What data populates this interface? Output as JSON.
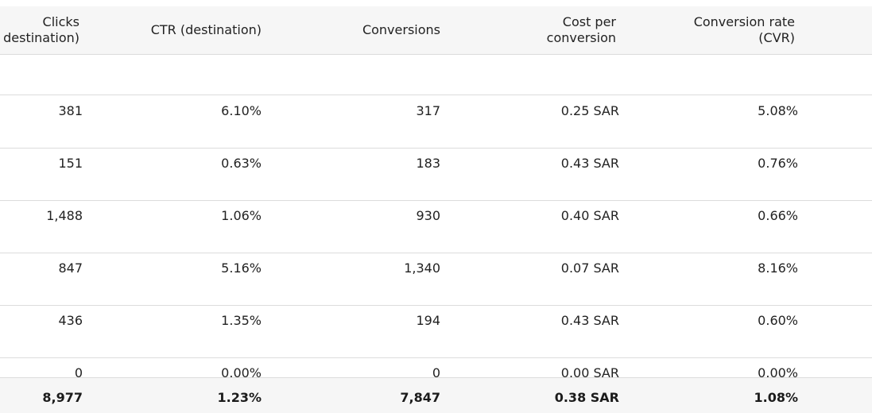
{
  "columns": [
    {
      "line1": "Clicks",
      "line2": "destination)"
    },
    {
      "line1": "CTR (destination)",
      "line2": ""
    },
    {
      "line1": "Conversions",
      "line2": ""
    },
    {
      "line1": "Cost per",
      "line2": "conversion"
    },
    {
      "line1": "Conversion rate",
      "line2": "(CVR)"
    }
  ],
  "rows": [
    {
      "clicks": "381",
      "ctr": "6.10%",
      "conversions": "317",
      "cpc": "0.25 SAR",
      "cvr": "5.08%"
    },
    {
      "clicks": "151",
      "ctr": "0.63%",
      "conversions": "183",
      "cpc": "0.43 SAR",
      "cvr": "0.76%"
    },
    {
      "clicks": "1,488",
      "ctr": "1.06%",
      "conversions": "930",
      "cpc": "0.40 SAR",
      "cvr": "0.66%"
    },
    {
      "clicks": "847",
      "ctr": "5.16%",
      "conversions": "1,340",
      "cpc": "0.07 SAR",
      "cvr": "8.16%"
    },
    {
      "clicks": "436",
      "ctr": "1.35%",
      "conversions": "194",
      "cpc": "0.43 SAR",
      "cvr": "0.60%"
    },
    {
      "clicks": "0",
      "ctr": "0.00%",
      "conversions": "0",
      "cpc": "0.00 SAR",
      "cvr": "0.00%"
    }
  ],
  "totals": {
    "clicks": "8,977",
    "ctr": "1.23%",
    "conversions": "7,847",
    "cpc": "0.38 SAR",
    "cvr": "1.08%"
  }
}
